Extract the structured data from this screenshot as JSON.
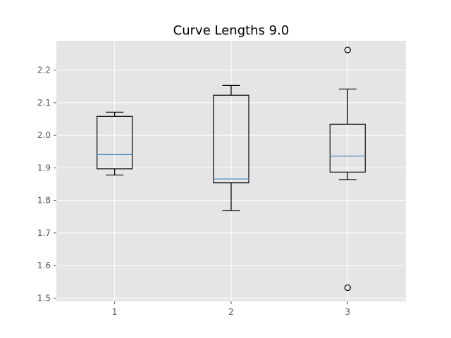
{
  "chart_data": {
    "type": "boxplot",
    "title": "Curve Lengths 9.0",
    "xlabel": "",
    "ylabel": "",
    "categories": [
      "1",
      "2",
      "3"
    ],
    "ylim": [
      1.49,
      2.29
    ],
    "yticks": [
      "1.5",
      "1.6",
      "1.7",
      "1.8",
      "1.9",
      "2.0",
      "2.1",
      "2.2"
    ],
    "grid": true,
    "boxes": [
      {
        "label": "1",
        "whisker_low": 1.878,
        "q1": 1.897,
        "median": 1.941,
        "q3": 2.058,
        "whisker_high": 2.071,
        "outliers": []
      },
      {
        "label": "2",
        "whisker_low": 1.769,
        "q1": 1.854,
        "median": 1.866,
        "q3": 2.123,
        "whisker_high": 2.153,
        "outliers": []
      },
      {
        "label": "3",
        "whisker_low": 1.864,
        "q1": 1.887,
        "median": 1.936,
        "q3": 2.034,
        "whisker_high": 2.142,
        "outliers": [
          2.262,
          1.532
        ]
      }
    ],
    "colors": {
      "plot_background": "#e5e5e5",
      "grid": "#ffffff",
      "box": "#000000",
      "median": "#4c8ec4",
      "tick_text": "#555555"
    }
  }
}
